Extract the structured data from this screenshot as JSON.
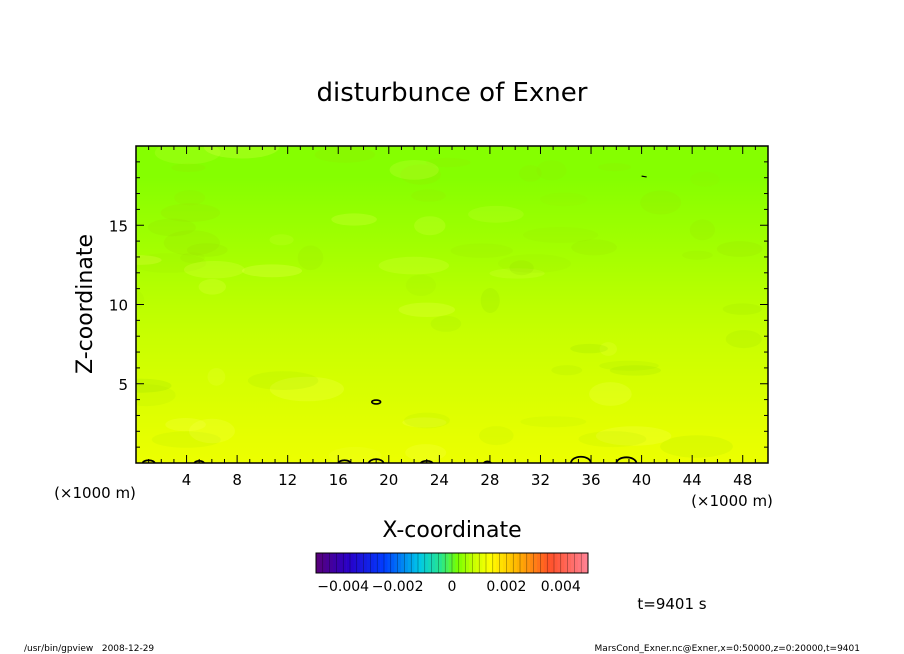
{
  "chart_data": {
    "type": "heatmap",
    "title": "disturbunce of Exner",
    "xlabel": "X-coordinate",
    "ylabel": "Z-coordinate",
    "x_unit_left": "(×1000 m)",
    "x_unit_right": "(×1000 m)",
    "xlim": [
      0,
      50
    ],
    "ylim": [
      0,
      20
    ],
    "x_ticks": [
      4,
      8,
      12,
      16,
      20,
      24,
      28,
      32,
      36,
      40,
      44,
      48
    ],
    "y_ticks": [
      5,
      10,
      15
    ],
    "grid": false,
    "field_levels": [
      {
        "z": 0.0,
        "value": 0.0012
      },
      {
        "z": 2.0,
        "value": 0.0011
      },
      {
        "z": 4.0,
        "value": 0.001
      },
      {
        "z": 6.0,
        "value": 0.0009
      },
      {
        "z": 8.0,
        "value": 0.0008
      },
      {
        "z": 10.0,
        "value": 0.0007
      },
      {
        "z": 12.0,
        "value": 0.0006
      },
      {
        "z": 14.0,
        "value": 0.0005
      },
      {
        "z": 16.0,
        "value": 0.0004
      },
      {
        "z": 18.0,
        "value": 0.0003
      },
      {
        "z": 20.0,
        "value": 0.0003
      }
    ],
    "contour_bumps": [
      {
        "x": 1.0,
        "w": 1.0,
        "h": 0.25
      },
      {
        "x": 5.0,
        "w": 0.8,
        "h": 0.2
      },
      {
        "x": 16.5,
        "w": 1.0,
        "h": 0.25
      },
      {
        "x": 19.0,
        "w": 1.2,
        "h": 0.35
      },
      {
        "x": 23.0,
        "w": 1.0,
        "h": 0.2
      },
      {
        "x": 27.8,
        "w": 0.6,
        "h": 0.15
      },
      {
        "x": 35.2,
        "w": 1.6,
        "h": 0.55
      },
      {
        "x": 38.8,
        "w": 1.6,
        "h": 0.5
      }
    ],
    "contour_islands": [
      {
        "x": 19.0,
        "z": 3.85,
        "rx": 0.35,
        "rz": 0.12
      }
    ],
    "colorbar": {
      "min": -0.005,
      "max": 0.005,
      "tick_labels": [
        {
          "label": "−0.004",
          "value": -0.004
        },
        {
          "label": "−0.002",
          "value": -0.002
        },
        {
          "label": "0",
          "value": 0
        },
        {
          "label": "0.002",
          "value": 0.002
        },
        {
          "label": "0.004",
          "value": 0.004
        }
      ]
    }
  },
  "annotations": {
    "time": "t=9401 s",
    "footer_left": "/usr/bin/gpview   2008-12-29",
    "footer_right": "MarsCond_Exner.nc@Exner,x=0:50000,z=0:20000,t=9401"
  }
}
